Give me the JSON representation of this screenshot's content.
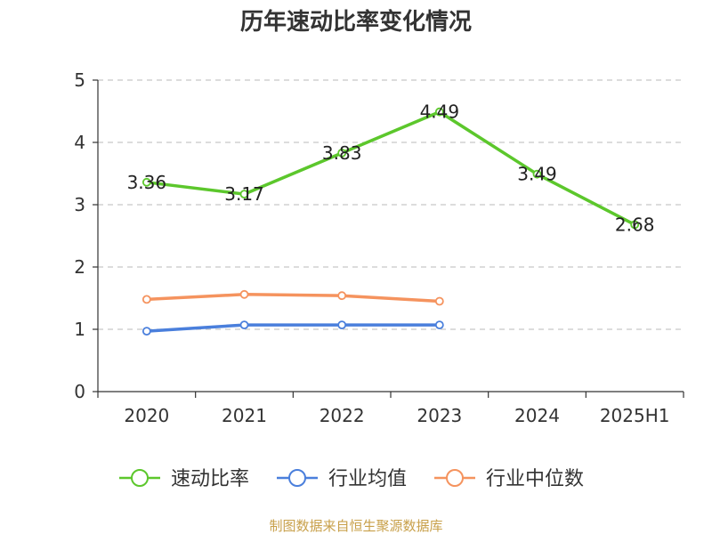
{
  "chart_data": {
    "type": "line",
    "title": "历年速动比率变化情况",
    "categories": [
      "2020",
      "2021",
      "2022",
      "2023",
      "2024",
      "2025H1"
    ],
    "y_ticks": [
      "0",
      "1",
      "2",
      "3",
      "4",
      "5"
    ],
    "ylim": [
      0,
      5
    ],
    "grid": "horizontal-dashed",
    "legend_position": "bottom",
    "series": [
      {
        "name": "速动比率",
        "color": "#5cc72c",
        "values": [
          3.36,
          3.17,
          3.83,
          4.49,
          3.49,
          2.68
        ],
        "labels": [
          "3.36",
          "3.17",
          "3.83",
          "4.49",
          "3.49",
          "2.68"
        ]
      },
      {
        "name": "行业均值",
        "color": "#4a7fdc",
        "values": [
          0.97,
          1.07,
          1.07,
          1.07,
          null,
          null
        ]
      },
      {
        "name": "行业中位数",
        "color": "#f5935e",
        "values": [
          1.48,
          1.56,
          1.54,
          1.45,
          null,
          null
        ]
      }
    ],
    "source": "制图数据来自恒生聚源数据库"
  }
}
